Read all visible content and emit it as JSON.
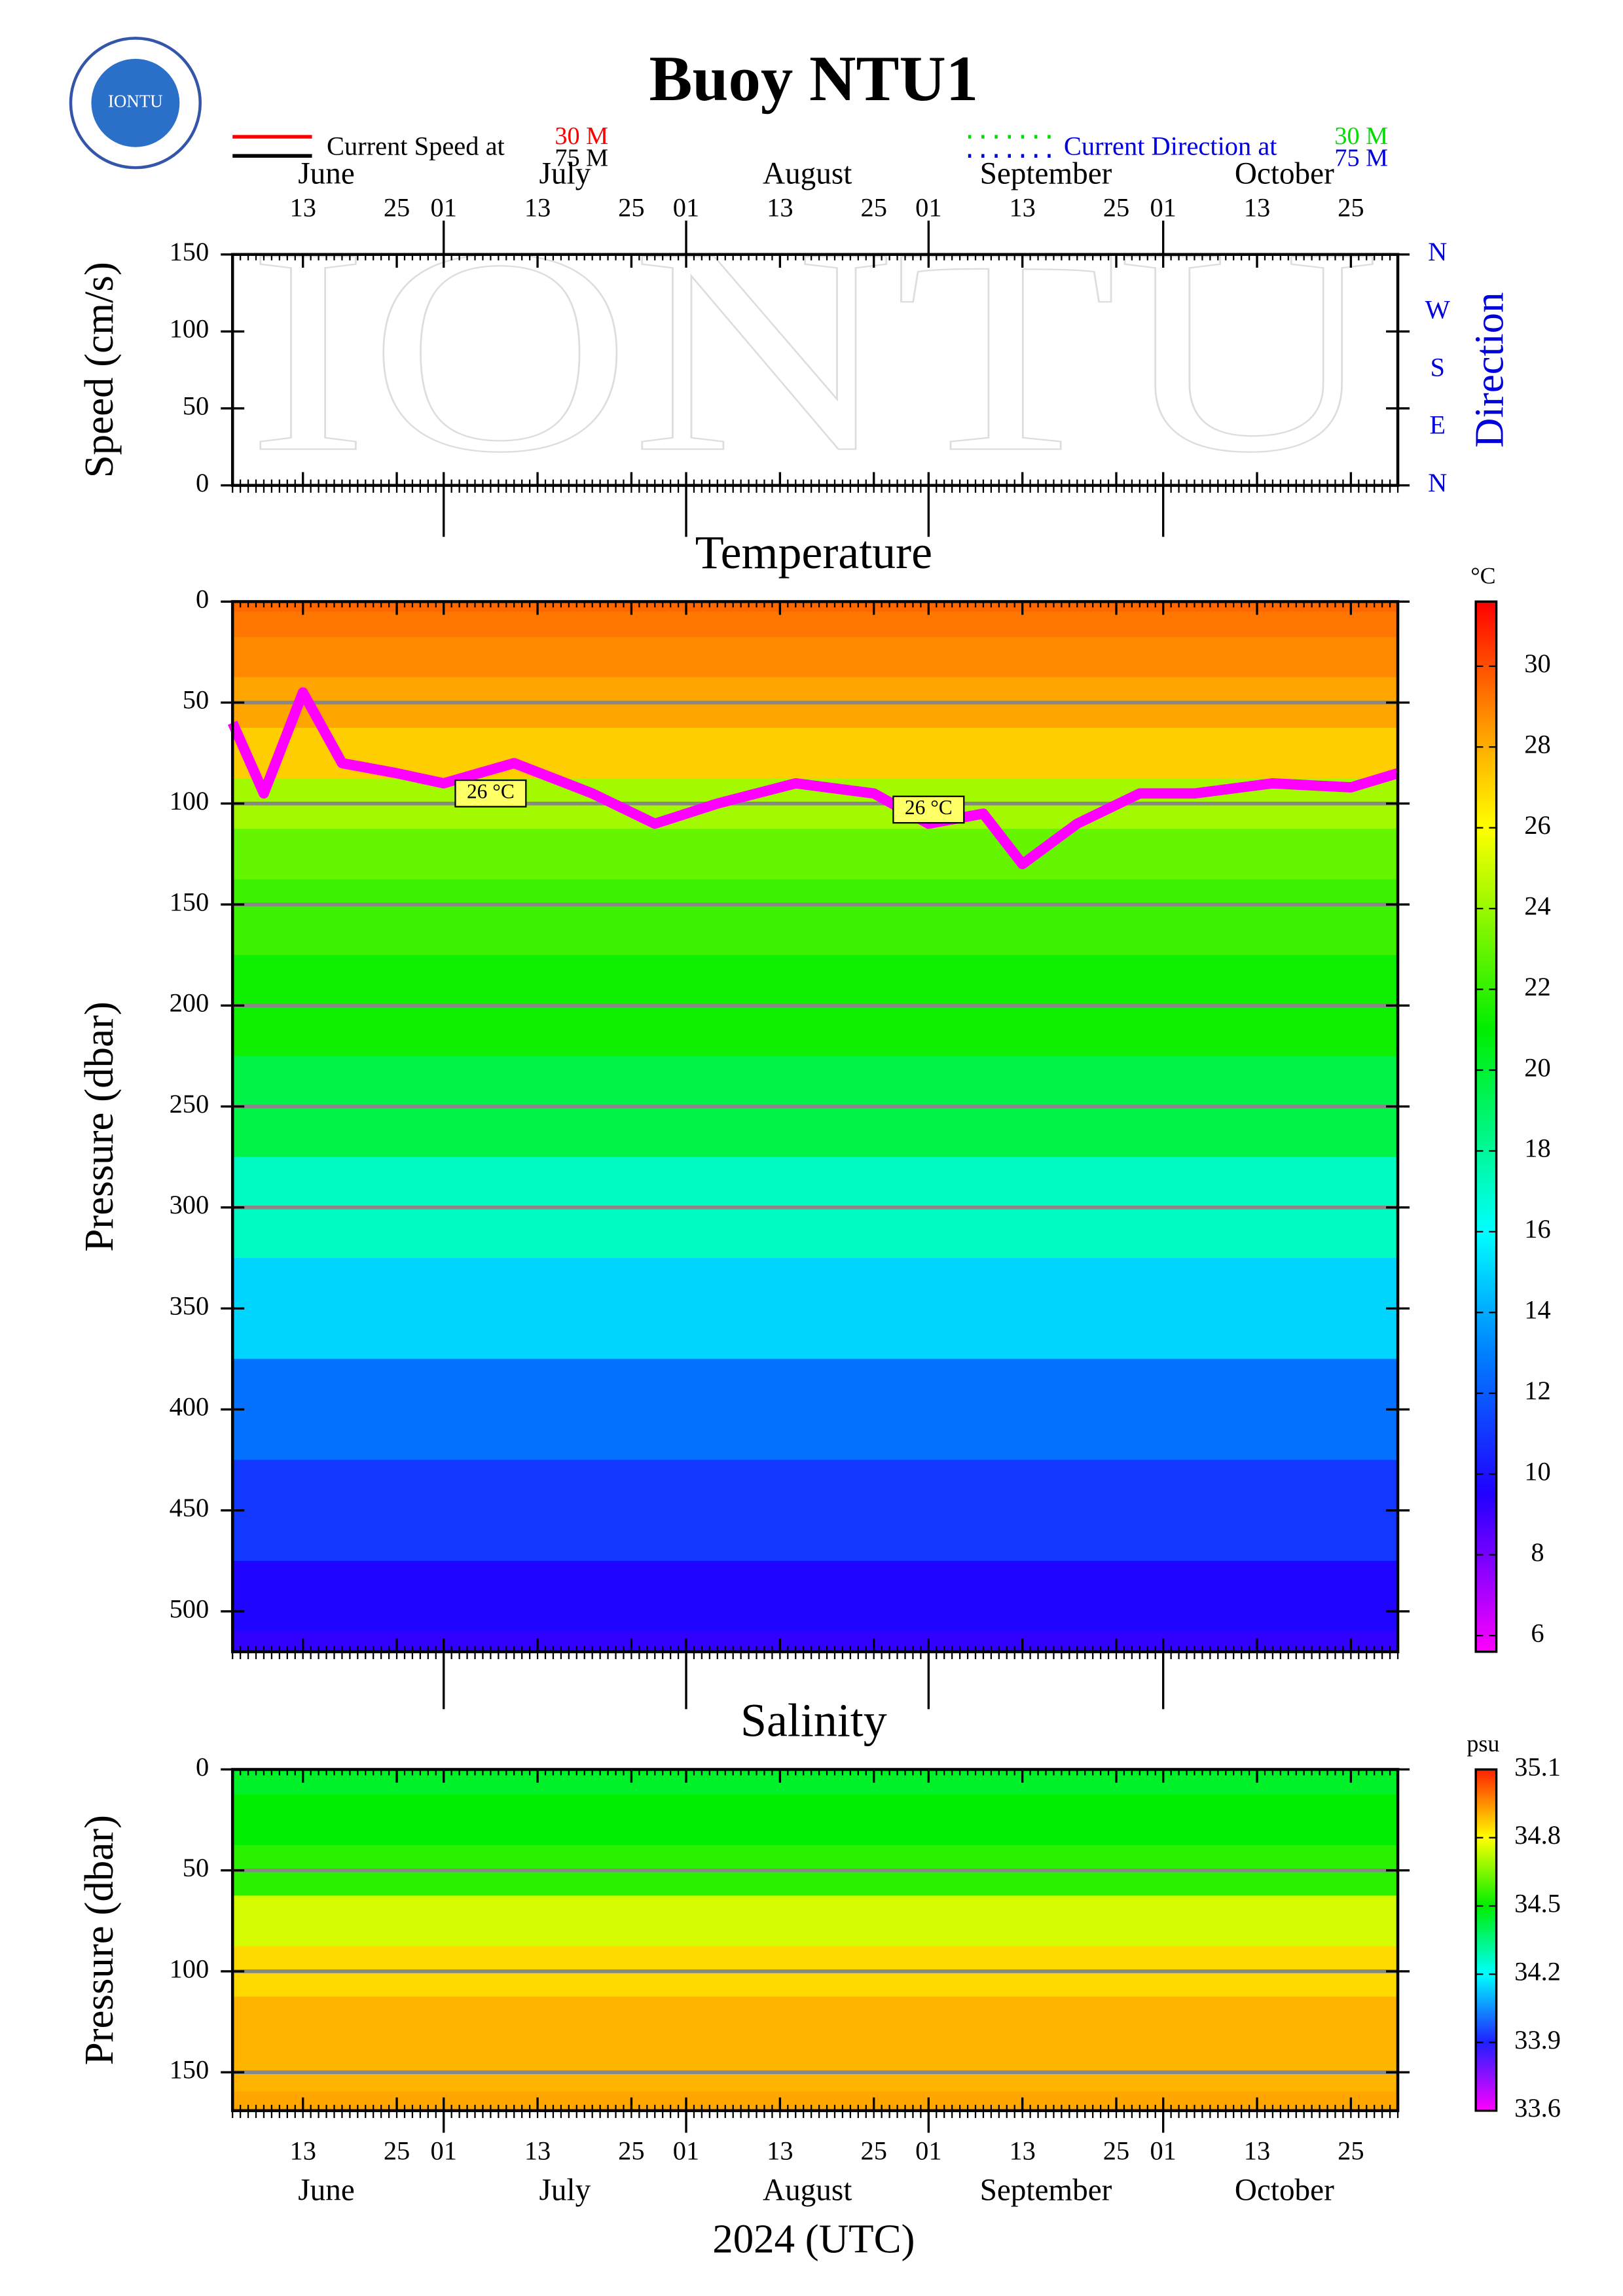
{
  "logo_text": "IONTU",
  "time_axis": {
    "xlim": [
      "2024-06-04",
      "2024-10-31"
    ],
    "xticks": [
      {
        "value": "2024-06-13",
        "label": "13"
      },
      {
        "value": "2024-06-25",
        "label": "25"
      },
      {
        "value": "2024-07-01",
        "label": "01"
      },
      {
        "value": "2024-07-13",
        "label": "13"
      },
      {
        "value": "2024-07-25",
        "label": "25"
      },
      {
        "value": "2024-08-01",
        "label": "01"
      },
      {
        "value": "2024-08-13",
        "label": "13"
      },
      {
        "value": "2024-08-25",
        "label": "25"
      },
      {
        "value": "2024-09-01",
        "label": "01"
      },
      {
        "value": "2024-09-13",
        "label": "13"
      },
      {
        "value": "2024-09-25",
        "label": "25"
      },
      {
        "value": "2024-10-01",
        "label": "01"
      },
      {
        "value": "2024-10-13",
        "label": "13"
      },
      {
        "value": "2024-10-25",
        "label": "25"
      }
    ],
    "months": [
      {
        "value": "2024-06",
        "label": "June"
      },
      {
        "value": "2024-07",
        "label": "July"
      },
      {
        "value": "2024-08",
        "label": "August"
      },
      {
        "value": "2024-09",
        "label": "September"
      },
      {
        "value": "2024-10",
        "label": "October"
      }
    ],
    "xlabel": "2024 (UTC)"
  },
  "chart_data": [
    {
      "type": "line",
      "title": "Buoy NTU1",
      "ylabel": "Speed (cm/s)",
      "y2label": "Direction",
      "ylim": [
        0,
        150
      ],
      "yticks": [
        0,
        50,
        100,
        150
      ],
      "y2lim": [
        0,
        360
      ],
      "y2ticks": [
        {
          "value": 0,
          "label": "N"
        },
        {
          "value": 90,
          "label": "E"
        },
        {
          "value": 180,
          "label": "S"
        },
        {
          "value": 270,
          "label": "W"
        },
        {
          "value": 360,
          "label": "N"
        }
      ],
      "legend": {
        "speed_label": "Current Speed at",
        "direction_label": "Current Direction at",
        "speed": [
          {
            "name": "30 M",
            "color": "#ff0000"
          },
          {
            "name": "75 M",
            "color": "#000000"
          }
        ],
        "direction": [
          {
            "name": "30 M",
            "color": "#00dd00"
          },
          {
            "name": "75 M",
            "color": "#0000dd"
          }
        ]
      }
    },
    {
      "type": "heatmap",
      "title": "Temperature",
      "ylabel": "Pressure (dbar)",
      "y_inverted": true,
      "ylim": [
        0,
        520
      ],
      "yticks": [
        0,
        50,
        100,
        150,
        200,
        250,
        300,
        350,
        400,
        450,
        500
      ],
      "depths": [
        0,
        10,
        25,
        50,
        75,
        100,
        125,
        150,
        200,
        250,
        300,
        350,
        400,
        450,
        500,
        520
      ],
      "values": [
        29.5,
        29.2,
        28.8,
        28.2,
        27.2,
        24.2,
        23,
        22.2,
        21.3,
        19.6,
        17.2,
        15,
        12.6,
        11,
        9.6,
        9.2
      ],
      "instrument_depths": [
        50,
        100,
        150,
        200,
        250,
        300
      ],
      "colorbar": {
        "unit": "°C",
        "clim": [
          5.6,
          31.6
        ],
        "ticks": [
          6,
          8,
          10,
          12,
          14,
          16,
          18,
          20,
          22,
          24,
          26,
          28,
          30
        ],
        "stops": [
          {
            "value": 5.6,
            "color": "#ff00ff"
          },
          {
            "value": 9.5,
            "color": "#2000ff"
          },
          {
            "value": 13,
            "color": "#0080ff"
          },
          {
            "value": 16,
            "color": "#00ffff"
          },
          {
            "value": 21,
            "color": "#00ee00"
          },
          {
            "value": 26,
            "color": "#ffff00"
          },
          {
            "value": 28.5,
            "color": "#ff9900"
          },
          {
            "value": 31.6,
            "color": "#ff0000"
          }
        ]
      },
      "contour": {
        "color": "#ff00ff",
        "x": [
          "2024-06-04",
          "2024-06-08",
          "2024-06-13",
          "2024-06-18",
          "2024-06-25",
          "2024-07-01",
          "2024-07-10",
          "2024-07-20",
          "2024-07-28",
          "2024-08-05",
          "2024-08-15",
          "2024-08-25",
          "2024-09-01",
          "2024-09-08",
          "2024-09-13",
          "2024-09-20",
          "2024-09-28",
          "2024-10-05",
          "2024-10-15",
          "2024-10-25",
          "2024-10-31"
        ],
        "y": [
          60,
          95,
          45,
          80,
          85,
          90,
          80,
          95,
          110,
          100,
          90,
          95,
          110,
          105,
          130,
          110,
          95,
          95,
          90,
          92,
          85
        ],
        "labels": [
          {
            "x": "2024-07-07",
            "y": 95,
            "text": "26 °C"
          },
          {
            "x": "2024-09-01",
            "y": 103,
            "text": "26 °C"
          }
        ]
      }
    },
    {
      "type": "heatmap",
      "title": "Salinity",
      "ylabel": "Pressure (dbar)",
      "y_inverted": true,
      "ylim": [
        0,
        169
      ],
      "yticks": [
        0,
        50,
        100,
        150
      ],
      "depths": [
        0,
        25,
        50,
        75,
        100,
        125,
        150,
        169
      ],
      "values": [
        34.45,
        34.5,
        34.55,
        34.75,
        34.85,
        34.9,
        34.9,
        34.92
      ],
      "instrument_depths": [
        50,
        100,
        150
      ],
      "colorbar": {
        "unit": "psu",
        "clim": [
          33.6,
          35.1
        ],
        "ticks": [
          33.6,
          33.9,
          34.2,
          34.5,
          34.8,
          35.1
        ],
        "stops": [
          {
            "value": 33.6,
            "color": "#ff00ff"
          },
          {
            "value": 33.9,
            "color": "#2020ff"
          },
          {
            "value": 34.2,
            "color": "#00ffff"
          },
          {
            "value": 34.5,
            "color": "#00ee00"
          },
          {
            "value": 34.8,
            "color": "#ffff00"
          },
          {
            "value": 35.1,
            "color": "#ff2000"
          }
        ]
      }
    }
  ]
}
